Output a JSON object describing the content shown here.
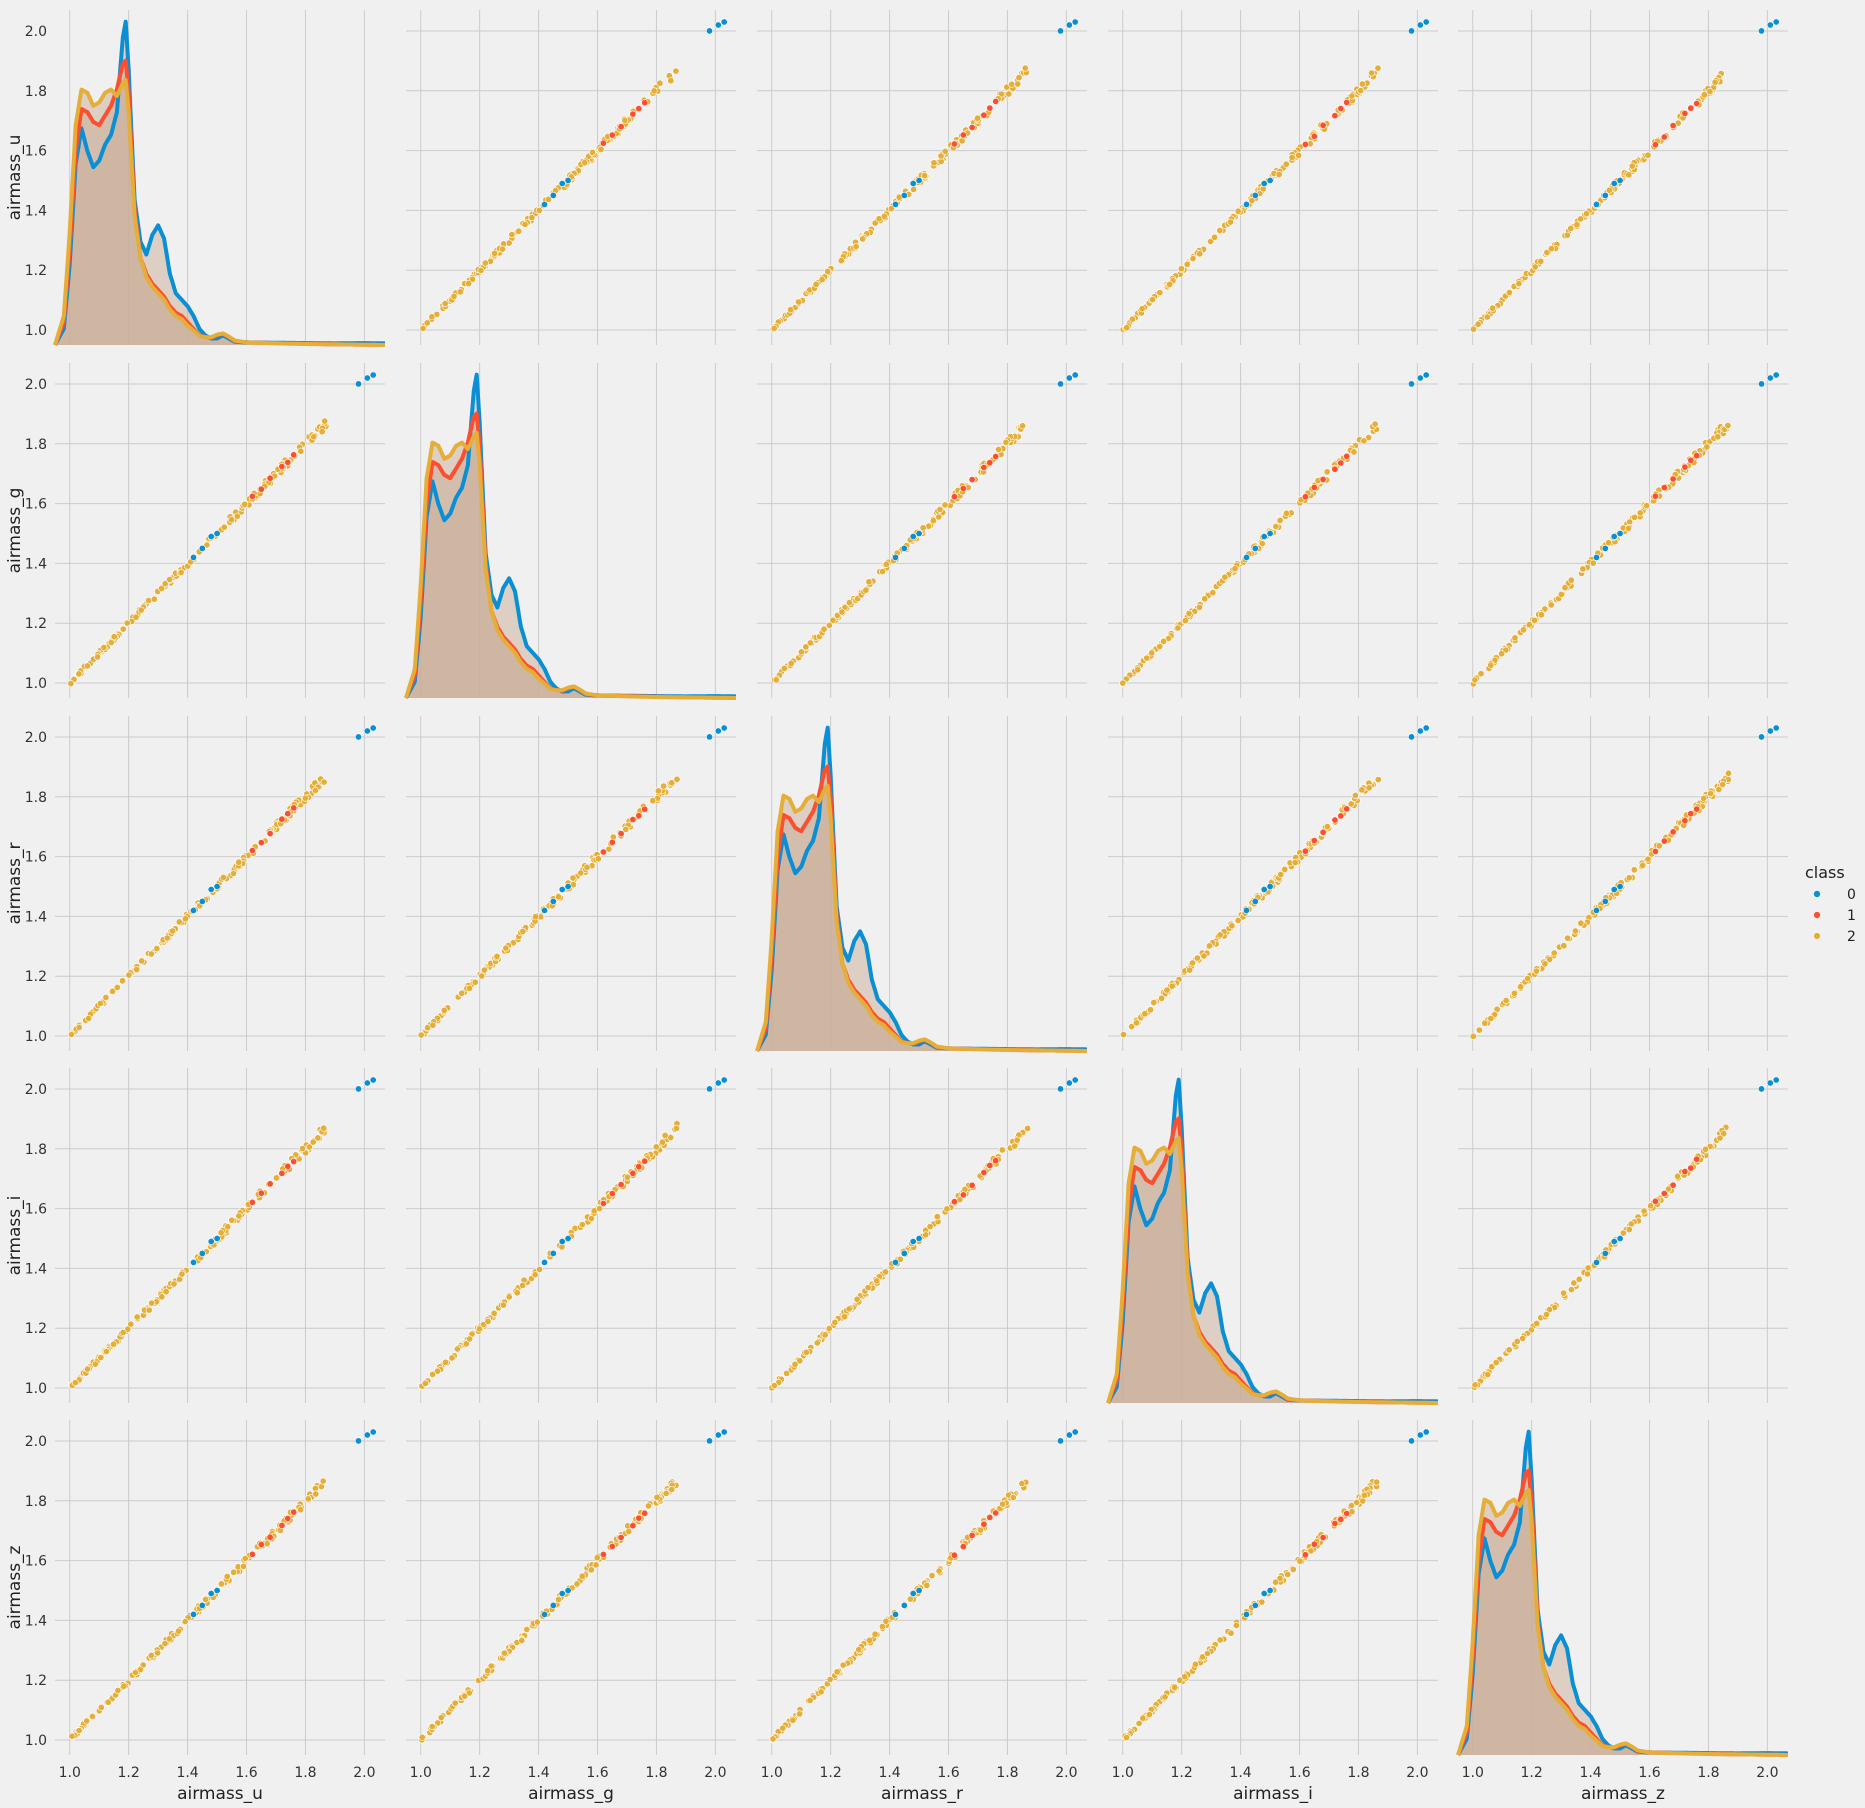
{
  "chart_data": {
    "type": "pairplot",
    "variables": [
      "airmass_u",
      "airmass_g",
      "airmass_r",
      "airmass_i",
      "airmass_z"
    ],
    "diagonal": "kde",
    "offdiagonal": "scatter",
    "hue": "class",
    "legend": {
      "title": "class",
      "placement": "right",
      "entries": [
        "0",
        "1",
        "2"
      ]
    },
    "colors": {
      "0": "#0a8fd5",
      "1": "#fc4f30",
      "2": "#e5ae38",
      "fill": "#c9ae98",
      "background": "#f0f0f0",
      "grid": "#cbcbcb"
    },
    "axis_range": [
      0.95,
      2.07
    ],
    "ticks": [
      "1.0",
      "1.2",
      "1.4",
      "1.6",
      "1.8",
      "2.0"
    ],
    "grid": true,
    "kde_peak": {
      "x": 1.19,
      "max_density": 1.0
    },
    "kde": {
      "x": [
        0.95,
        0.98,
        1.0,
        1.02,
        1.04,
        1.06,
        1.08,
        1.1,
        1.12,
        1.14,
        1.16,
        1.18,
        1.19,
        1.2,
        1.22,
        1.24,
        1.26,
        1.28,
        1.3,
        1.32,
        1.34,
        1.36,
        1.38,
        1.4,
        1.42,
        1.44,
        1.46,
        1.48,
        1.5,
        1.52,
        1.54,
        1.56,
        1.6,
        1.7,
        1.8,
        1.9,
        2.0,
        2.07
      ],
      "series": [
        {
          "name": "0",
          "values": [
            0.0,
            0.05,
            0.25,
            0.56,
            0.67,
            0.6,
            0.55,
            0.57,
            0.62,
            0.65,
            0.72,
            0.95,
            1.0,
            0.85,
            0.45,
            0.32,
            0.28,
            0.34,
            0.37,
            0.33,
            0.22,
            0.16,
            0.14,
            0.12,
            0.09,
            0.05,
            0.03,
            0.02,
            0.02,
            0.03,
            0.02,
            0.01,
            0.008,
            0.007,
            0.006,
            0.005,
            0.006,
            0.005
          ]
        },
        {
          "name": "1",
          "values": [
            0.0,
            0.07,
            0.3,
            0.6,
            0.73,
            0.72,
            0.69,
            0.68,
            0.71,
            0.74,
            0.79,
            0.87,
            0.88,
            0.78,
            0.42,
            0.27,
            0.22,
            0.19,
            0.17,
            0.15,
            0.12,
            0.1,
            0.09,
            0.07,
            0.05,
            0.03,
            0.025,
            0.022,
            0.03,
            0.035,
            0.025,
            0.012,
            0.008,
            0.006,
            0.004,
            0.002,
            0.001,
            0.0
          ]
        },
        {
          "name": "2",
          "values": [
            0.0,
            0.09,
            0.35,
            0.68,
            0.79,
            0.78,
            0.74,
            0.75,
            0.78,
            0.79,
            0.77,
            0.81,
            0.82,
            0.72,
            0.4,
            0.27,
            0.21,
            0.18,
            0.16,
            0.14,
            0.11,
            0.09,
            0.08,
            0.06,
            0.045,
            0.028,
            0.024,
            0.024,
            0.032,
            0.036,
            0.026,
            0.014,
            0.008,
            0.005,
            0.003,
            0.002,
            0.001,
            0.0
          ]
        }
      ]
    },
    "scatter": {
      "class_2_range": [
        1.0,
        1.87
      ],
      "class_1_points": [
        1.62,
        1.65,
        1.68,
        1.72,
        1.74,
        1.76
      ],
      "class_0_points": [
        [
          1.42,
          1.42
        ],
        [
          1.45,
          1.45
        ],
        [
          1.48,
          1.49
        ],
        [
          1.5,
          1.5
        ],
        [
          1.98,
          2.0
        ],
        [
          2.01,
          2.02
        ],
        [
          2.03,
          2.03
        ]
      ]
    }
  }
}
